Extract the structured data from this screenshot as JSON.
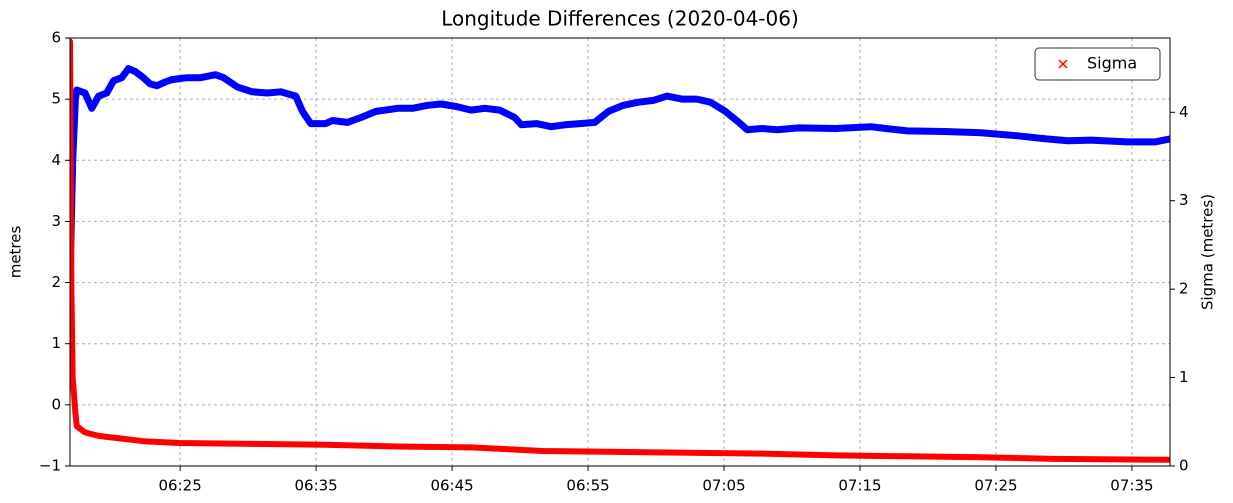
{
  "chart_data": {
    "type": "line",
    "title": "Longitude Differences (2020-04-06)",
    "ylabel": "metres",
    "y2label": "Sigma (metres)",
    "xlim": [
      376.9,
      457.8
    ],
    "xticks": [
      {
        "value": 385,
        "label": "06:25"
      },
      {
        "value": 395,
        "label": "06:35"
      },
      {
        "value": 405,
        "label": "06:45"
      },
      {
        "value": 415,
        "label": "06:55"
      },
      {
        "value": 425,
        "label": "07:05"
      },
      {
        "value": 435,
        "label": "07:15"
      },
      {
        "value": 445,
        "label": "07:25"
      },
      {
        "value": 455,
        "label": "07:35"
      }
    ],
    "ylim": [
      -1,
      6
    ],
    "yticks": [
      {
        "value": -1,
        "label": "−1"
      },
      0,
      1,
      2,
      3,
      4,
      5,
      6
    ],
    "y2lim": [
      0,
      4.84
    ],
    "y2ticks": [
      0,
      1,
      2,
      3,
      4
    ],
    "grid": true,
    "legend": "upper right",
    "series": [
      {
        "color": "#0000ff",
        "axis": "y",
        "x": [
          376.9,
          377.1,
          377.3,
          377.4,
          378.0,
          378.5,
          379.0,
          379.6,
          380.1,
          380.7,
          381.2,
          381.7,
          382.3,
          382.8,
          383.3,
          383.9,
          384.4,
          385.5,
          386.5,
          387.6,
          388.2,
          389.2,
          390.3,
          391.4,
          392.4,
          393.5,
          394.0,
          394.6,
          395.7,
          396.2,
          397.3,
          398.3,
          399.4,
          401.0,
          402.1,
          403.2,
          404.2,
          405.3,
          406.4,
          407.4,
          408.5,
          409.6,
          410.1,
          411.2,
          412.3,
          413.3,
          414.4,
          415.5,
          416.5,
          417.6,
          418.7,
          419.8,
          420.8,
          421.9,
          423.0,
          424.0,
          425.1,
          426.2,
          426.7,
          427.8,
          428.9,
          430.5,
          433.2,
          435.8,
          436.9,
          438.5,
          441.2,
          443.9,
          446.6,
          448.7,
          450.3,
          452.0,
          454.6,
          456.7,
          457.8
        ],
        "values": [
          2.0,
          4.0,
          5.0,
          5.15,
          5.1,
          4.85,
          5.05,
          5.1,
          5.3,
          5.35,
          5.5,
          5.45,
          5.35,
          5.25,
          5.22,
          5.28,
          5.32,
          5.35,
          5.35,
          5.4,
          5.35,
          5.2,
          5.12,
          5.1,
          5.12,
          5.05,
          4.8,
          4.6,
          4.6,
          4.65,
          4.62,
          4.7,
          4.8,
          4.85,
          4.85,
          4.9,
          4.92,
          4.88,
          4.82,
          4.85,
          4.82,
          4.7,
          4.58,
          4.6,
          4.55,
          4.58,
          4.6,
          4.62,
          4.8,
          4.9,
          4.95,
          4.98,
          5.05,
          5.0,
          5.0,
          4.95,
          4.8,
          4.6,
          4.5,
          4.52,
          4.5,
          4.53,
          4.52,
          4.55,
          4.52,
          4.48,
          4.47,
          4.45,
          4.4,
          4.35,
          4.32,
          4.33,
          4.3,
          4.3,
          4.35
        ]
      },
      {
        "name": "Sigma",
        "color": "#ff0000",
        "axis": "y2",
        "x": [
          376.9,
          377.0,
          377.1,
          377.3,
          377.4,
          378.0,
          379.0,
          380.7,
          382.3,
          384.9,
          390.3,
          395.7,
          401.0,
          406.4,
          411.7,
          417.1,
          422.5,
          427.8,
          433.2,
          438.5,
          443.9,
          449.3,
          457.8
        ],
        "values": [
          4.8,
          2.0,
          1.0,
          0.6,
          0.45,
          0.38,
          0.34,
          0.31,
          0.28,
          0.26,
          0.25,
          0.24,
          0.22,
          0.21,
          0.17,
          0.16,
          0.15,
          0.14,
          0.12,
          0.11,
          0.1,
          0.08,
          0.07
        ]
      }
    ]
  }
}
